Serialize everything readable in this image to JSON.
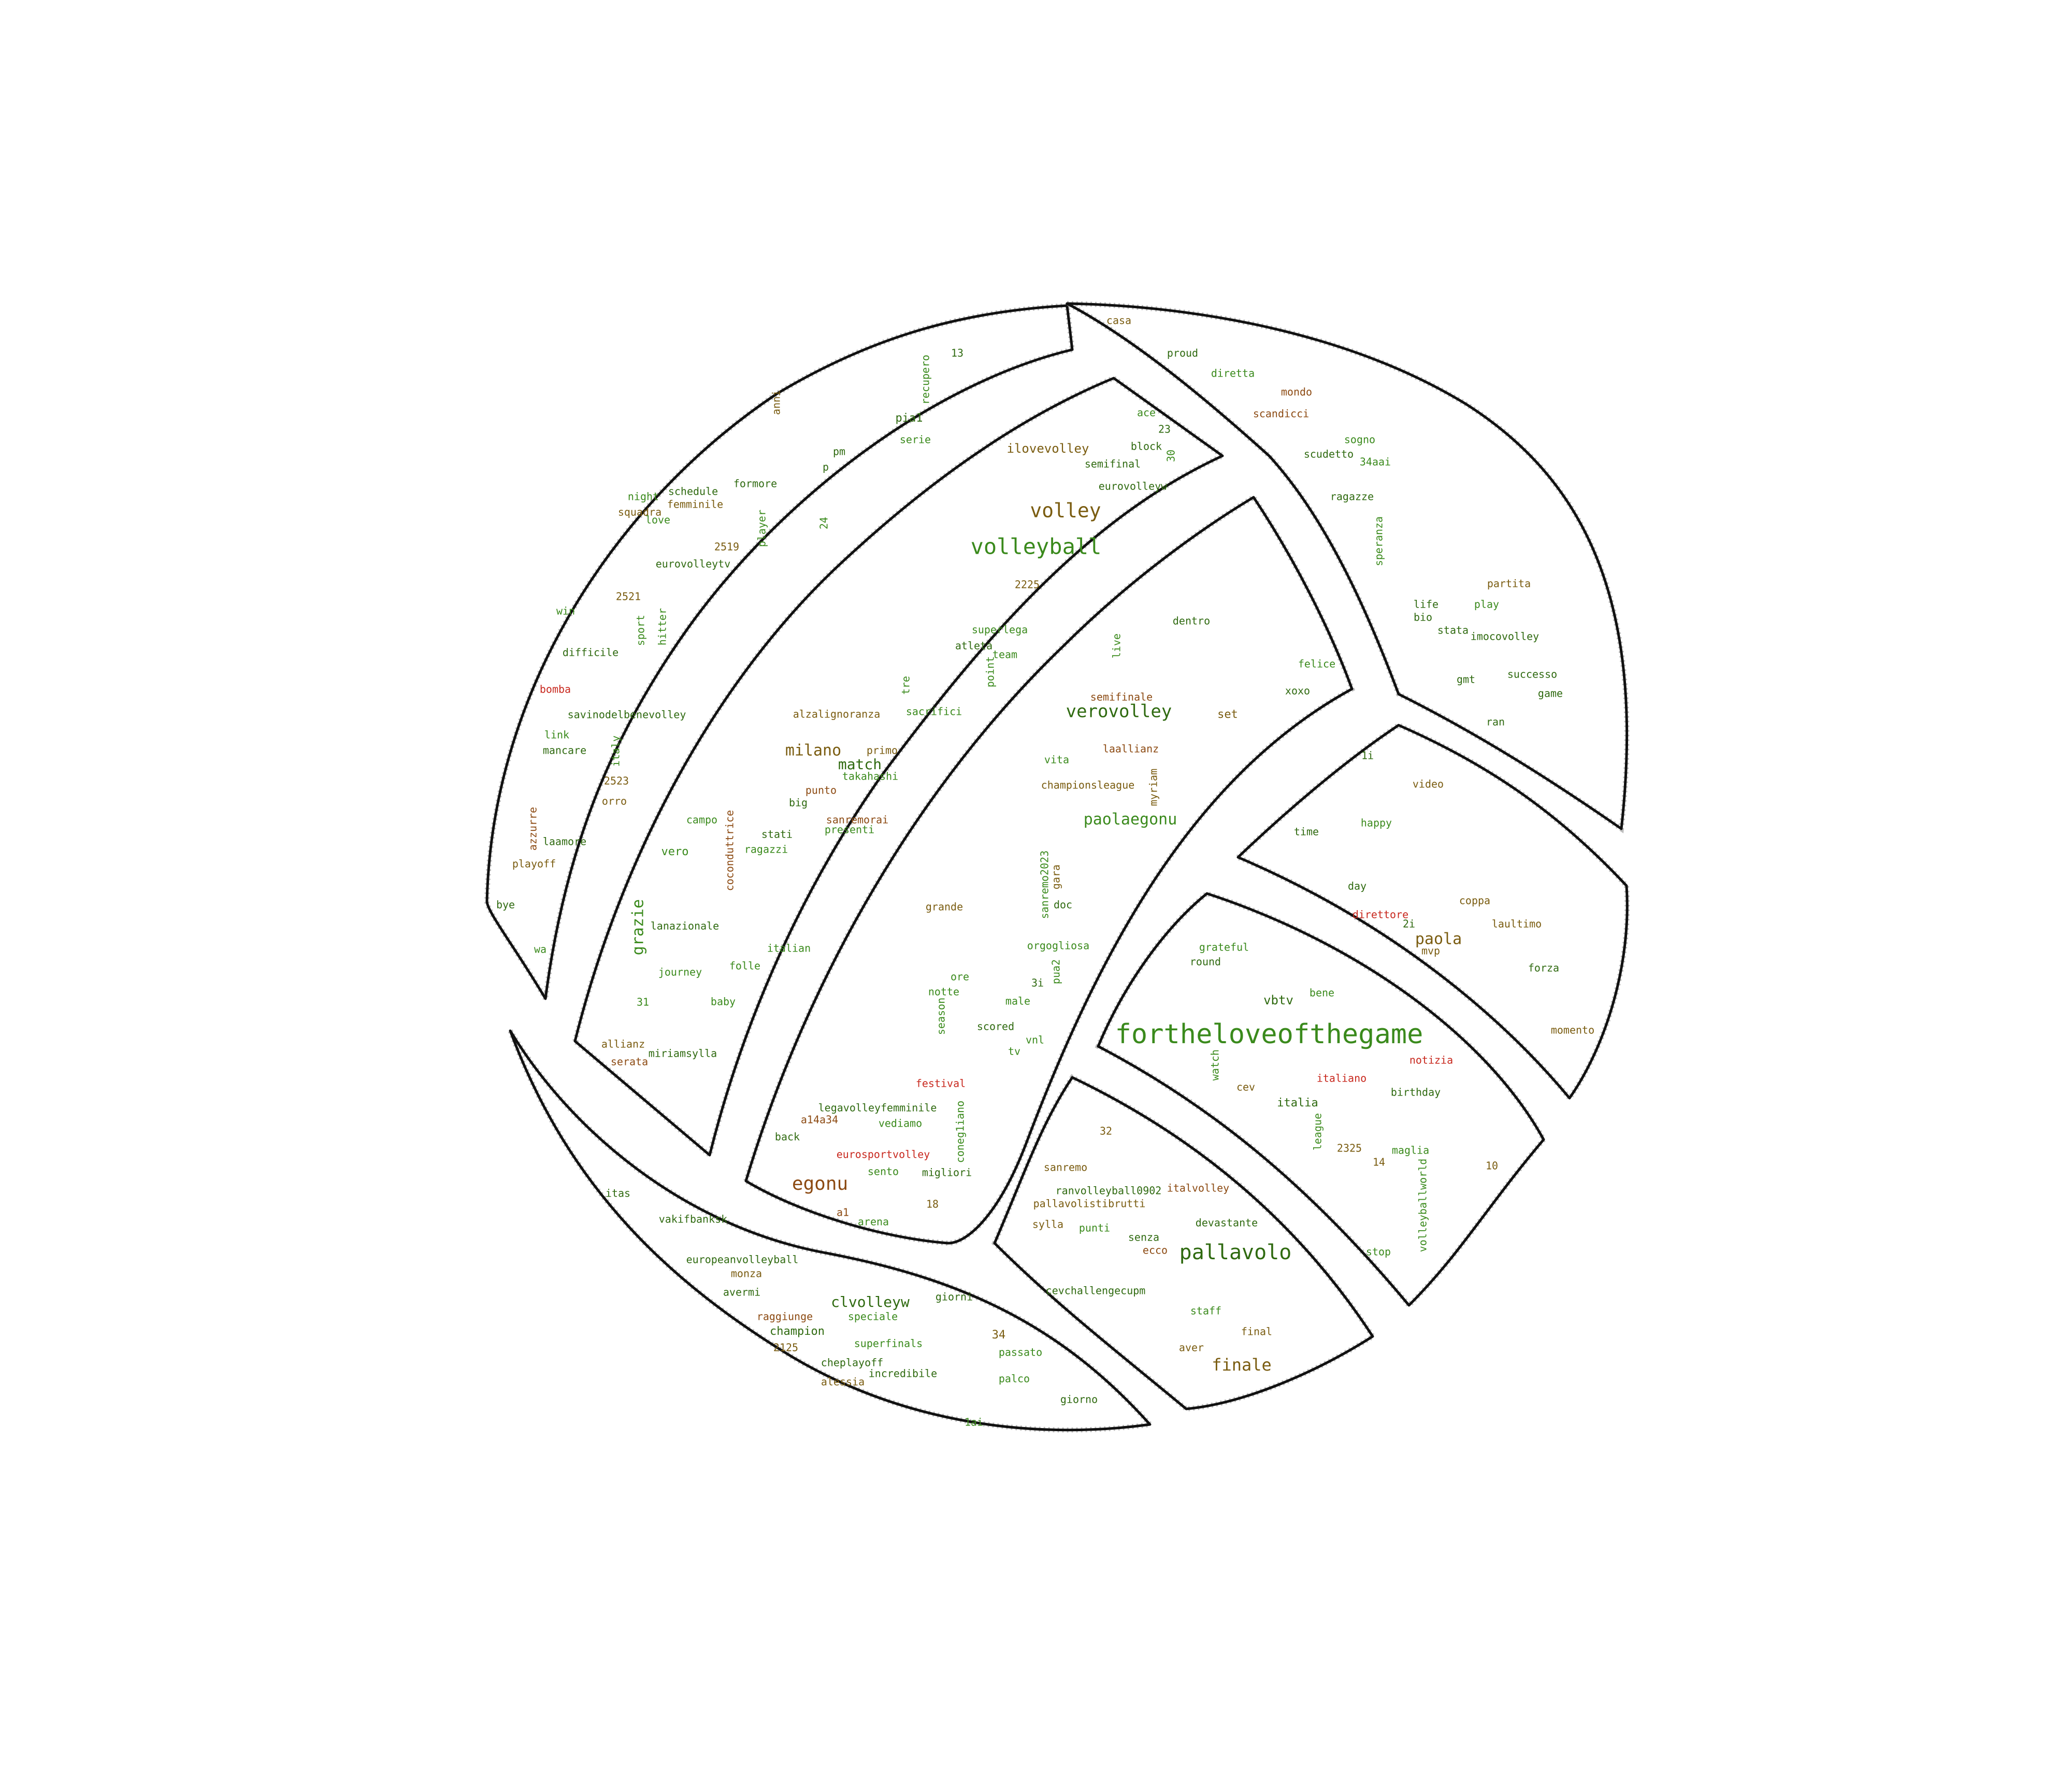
{
  "image": {
    "background": "#ffffff",
    "outline_color": "#111111"
  },
  "palette": {
    "green": "#3a8a1c",
    "dark_green": "#2f6a10",
    "olive": "#7a5c10",
    "brown": "#8c4a12",
    "red": "#c8281e"
  },
  "words": [
    {
      "text": "fortheloveofthegame",
      "size": 52,
      "color": "green"
    },
    {
      "text": "volleyball",
      "size": 42,
      "color": "green"
    },
    {
      "text": "volley",
      "size": 38,
      "color": "olive"
    },
    {
      "text": "pallavolo",
      "size": 40,
      "color": "dark_green"
    },
    {
      "text": "verovolley",
      "size": 34,
      "color": "dark_green"
    },
    {
      "text": "egonu",
      "size": 36,
      "color": "brown"
    },
    {
      "text": "finale",
      "size": 32,
      "color": "olive"
    },
    {
      "text": "paola",
      "size": 30,
      "color": "olive"
    },
    {
      "text": "paolaegonu",
      "size": 30,
      "color": "green"
    },
    {
      "text": "milano",
      "size": 30,
      "color": "olive"
    },
    {
      "text": "match",
      "size": 28,
      "color": "dark_green"
    },
    {
      "text": "clvolleyw",
      "size": 28,
      "color": "dark_green"
    },
    {
      "text": "grazie",
      "size": 30,
      "color": "green"
    },
    {
      "text": "vbtv",
      "size": 24,
      "color": "dark_green"
    },
    {
      "text": "ilovevolley",
      "size": 24,
      "color": "olive"
    },
    {
      "text": "casa",
      "size": 20,
      "color": "olive"
    },
    {
      "text": "proud",
      "size": 20,
      "color": "dark_green"
    },
    {
      "text": "diretta",
      "size": 20,
      "color": "green"
    },
    {
      "text": "mondo",
      "size": 20,
      "color": "brown"
    },
    {
      "text": "scandicci",
      "size": 20,
      "color": "brown"
    },
    {
      "text": "sogno",
      "size": 20,
      "color": "green"
    },
    {
      "text": "scudetto",
      "size": 20,
      "color": "dark_green"
    },
    {
      "text": "34aai",
      "size": 20,
      "color": "green"
    },
    {
      "text": "ragazze",
      "size": 20,
      "color": "dark_green"
    },
    {
      "text": "speranza",
      "size": 20,
      "color": "green"
    },
    {
      "text": "partita",
      "size": 20,
      "color": "olive"
    },
    {
      "text": "life",
      "size": 20,
      "color": "dark_green"
    },
    {
      "text": "play",
      "size": 20,
      "color": "green"
    },
    {
      "text": "bio",
      "size": 20,
      "color": "dark_green"
    },
    {
      "text": "stata",
      "size": 20,
      "color": "dark_green"
    },
    {
      "text": "imocovolley",
      "size": 20,
      "color": "dark_green"
    },
    {
      "text": "gmt",
      "size": 20,
      "color": "dark_green"
    },
    {
      "text": "successo",
      "size": 20,
      "color": "dark_green"
    },
    {
      "text": "game",
      "size": 20,
      "color": "dark_green"
    },
    {
      "text": "ran",
      "size": 20,
      "color": "dark_green"
    },
    {
      "text": "ace",
      "size": 20,
      "color": "green"
    },
    {
      "text": "23",
      "size": 20,
      "color": "dark_green"
    },
    {
      "text": "block",
      "size": 20,
      "color": "dark_green"
    },
    {
      "text": "30",
      "size": 20,
      "color": "green"
    },
    {
      "text": "semifinal",
      "size": 20,
      "color": "dark_green"
    },
    {
      "text": "eurovolleyw",
      "size": 20,
      "color": "dark_green"
    },
    {
      "text": "2225",
      "size": 20,
      "color": "olive"
    },
    {
      "text": "superlega",
      "size": 20,
      "color": "green"
    },
    {
      "text": "atleta",
      "size": 20,
      "color": "dark_green"
    },
    {
      "text": "team",
      "size": 20,
      "color": "green"
    },
    {
      "text": "point",
      "size": 20,
      "color": "green"
    },
    {
      "text": "live",
      "size": 20,
      "color": "green"
    },
    {
      "text": "dentro",
      "size": 20,
      "color": "dark_green"
    },
    {
      "text": "felice",
      "size": 20,
      "color": "green"
    },
    {
      "text": "xoxo",
      "size": 20,
      "color": "dark_green"
    },
    {
      "text": "semifinale",
      "size": 20,
      "color": "brown"
    },
    {
      "text": "set",
      "size": 22,
      "color": "olive"
    },
    {
      "text": "laallianz",
      "size": 20,
      "color": "brown"
    },
    {
      "text": "vita",
      "size": 20,
      "color": "green"
    },
    {
      "text": "championsleague",
      "size": 20,
      "color": "olive"
    },
    {
      "text": "myriam",
      "size": 20,
      "color": "olive"
    },
    {
      "text": "1i",
      "size": 20,
      "color": "dark_green"
    },
    {
      "text": "video",
      "size": 20,
      "color": "olive"
    },
    {
      "text": "time",
      "size": 20,
      "color": "dark_green"
    },
    {
      "text": "happy",
      "size": 20,
      "color": "green"
    },
    {
      "text": "day",
      "size": 20,
      "color": "dark_green"
    },
    {
      "text": "coppa",
      "size": 20,
      "color": "olive"
    },
    {
      "text": "direttore",
      "size": 20,
      "color": "red"
    },
    {
      "text": "2i",
      "size": 20,
      "color": "dark_green"
    },
    {
      "text": "laultimo",
      "size": 20,
      "color": "olive"
    },
    {
      "text": "mvp",
      "size": 20,
      "color": "olive"
    },
    {
      "text": "forza",
      "size": 20,
      "color": "dark_green"
    },
    {
      "text": "momento",
      "size": 20,
      "color": "olive"
    },
    {
      "text": "notizia",
      "size": 20,
      "color": "red"
    },
    {
      "text": "birthday",
      "size": 20,
      "color": "dark_green"
    },
    {
      "text": "maglia",
      "size": 20,
      "color": "green"
    },
    {
      "text": "10",
      "size": 20,
      "color": "olive"
    },
    {
      "text": "volleyballworld",
      "size": 20,
      "color": "green"
    },
    {
      "text": "stop",
      "size": 20,
      "color": "green"
    },
    {
      "text": "grateful",
      "size": 20,
      "color": "green"
    },
    {
      "text": "round",
      "size": 20,
      "color": "dark_green"
    },
    {
      "text": "bene",
      "size": 20,
      "color": "green"
    },
    {
      "text": "watch",
      "size": 20,
      "color": "green"
    },
    {
      "text": "cev",
      "size": 20,
      "color": "olive"
    },
    {
      "text": "italiano",
      "size": 20,
      "color": "red"
    },
    {
      "text": "italia",
      "size": 22,
      "color": "dark_green"
    },
    {
      "text": "league",
      "size": 20,
      "color": "green"
    },
    {
      "text": "2325",
      "size": 20,
      "color": "olive"
    },
    {
      "text": "14",
      "size": 20,
      "color": "olive"
    },
    {
      "text": "32",
      "size": 20,
      "color": "olive"
    },
    {
      "text": "sanremo",
      "size": 20,
      "color": "olive"
    },
    {
      "text": "ranvolleyball0902",
      "size": 20,
      "color": "dark_green"
    },
    {
      "text": "italvolley",
      "size": 20,
      "color": "brown"
    },
    {
      "text": "pallavolistibrutti",
      "size": 20,
      "color": "olive"
    },
    {
      "text": "sylla",
      "size": 20,
      "color": "olive"
    },
    {
      "text": "punti",
      "size": 20,
      "color": "green"
    },
    {
      "text": "devastante",
      "size": 20,
      "color": "dark_green"
    },
    {
      "text": "senza",
      "size": 20,
      "color": "dark_green"
    },
    {
      "text": "ecco",
      "size": 20,
      "color": "brown"
    },
    {
      "text": "cevchallengecupm",
      "size": 20,
      "color": "dark_green"
    },
    {
      "text": "staff",
      "size": 20,
      "color": "green"
    },
    {
      "text": "final",
      "size": 20,
      "color": "olive"
    },
    {
      "text": "aver",
      "size": 20,
      "color": "olive"
    },
    {
      "text": "13",
      "size": 20,
      "color": "dark_green"
    },
    {
      "text": "recupero",
      "size": 20,
      "color": "green"
    },
    {
      "text": "anni",
      "size": 20,
      "color": "olive"
    },
    {
      "text": "pia1",
      "size": 22,
      "color": "dark_green"
    },
    {
      "text": "serie",
      "size": 20,
      "color": "green"
    },
    {
      "text": "pm",
      "size": 20,
      "color": "dark_green"
    },
    {
      "text": "p",
      "size": 20,
      "color": "dark_green"
    },
    {
      "text": "formore",
      "size": 20,
      "color": "dark_green"
    },
    {
      "text": "schedule",
      "size": 20,
      "color": "dark_green"
    },
    {
      "text": "femminile",
      "size": 20,
      "color": "olive"
    },
    {
      "text": "night",
      "size": 20,
      "color": "green"
    },
    {
      "text": "squadra",
      "size": 20,
      "color": "olive"
    },
    {
      "text": "love",
      "size": 20,
      "color": "green"
    },
    {
      "text": "player",
      "size": 20,
      "color": "green"
    },
    {
      "text": "24",
      "size": 20,
      "color": "green"
    },
    {
      "text": "2519",
      "size": 20,
      "color": "olive"
    },
    {
      "text": "eurovolleytv",
      "size": 20,
      "color": "dark_green"
    },
    {
      "text": "2521",
      "size": 20,
      "color": "olive"
    },
    {
      "text": "win",
      "size": 20,
      "color": "green"
    },
    {
      "text": "sport",
      "size": 20,
      "color": "green"
    },
    {
      "text": "hitter",
      "size": 20,
      "color": "green"
    },
    {
      "text": "difficile",
      "size": 20,
      "color": "dark_green"
    },
    {
      "text": "bomba",
      "size": 20,
      "color": "red"
    },
    {
      "text": "savinodelbenevolley",
      "size": 20,
      "color": "dark_green"
    },
    {
      "text": "link",
      "size": 20,
      "color": "green"
    },
    {
      "text": "mancare",
      "size": 20,
      "color": "dark_green"
    },
    {
      "text": "italy",
      "size": 20,
      "color": "green"
    },
    {
      "text": "2523",
      "size": 20,
      "color": "olive"
    },
    {
      "text": "orro",
      "size": 20,
      "color": "olive"
    },
    {
      "text": "azzurre",
      "size": 20,
      "color": "brown"
    },
    {
      "text": "laamore",
      "size": 20,
      "color": "dark_green"
    },
    {
      "text": "playoff",
      "size": 20,
      "color": "olive"
    },
    {
      "text": "bye",
      "size": 20,
      "color": "dark_green"
    },
    {
      "text": "wa",
      "size": 20,
      "color": "green"
    },
    {
      "text": "tre",
      "size": 20,
      "color": "green"
    },
    {
      "text": "sacrifici",
      "size": 20,
      "color": "green"
    },
    {
      "text": "alzalignoranza",
      "size": 20,
      "color": "olive"
    },
    {
      "text": "primo",
      "size": 20,
      "color": "olive"
    },
    {
      "text": "takahashi",
      "size": 20,
      "color": "green"
    },
    {
      "text": "punto",
      "size": 20,
      "color": "brown"
    },
    {
      "text": "big",
      "size": 20,
      "color": "dark_green"
    },
    {
      "text": "campo",
      "size": 20,
      "color": "green"
    },
    {
      "text": "sanremorai",
      "size": 20,
      "color": "brown"
    },
    {
      "text": "presenti",
      "size": 20,
      "color": "green"
    },
    {
      "text": "stati",
      "size": 20,
      "color": "dark_green"
    },
    {
      "text": "ragazzi",
      "size": 20,
      "color": "green"
    },
    {
      "text": "vero",
      "size": 22,
      "color": "green"
    },
    {
      "text": "coconduttrice",
      "size": 20,
      "color": "brown"
    },
    {
      "text": "lanazionale",
      "size": 20,
      "color": "dark_green"
    },
    {
      "text": "italian",
      "size": 20,
      "color": "green"
    },
    {
      "text": "journey",
      "size": 20,
      "color": "green"
    },
    {
      "text": "folle",
      "size": 20,
      "color": "green"
    },
    {
      "text": "31",
      "size": 20,
      "color": "green"
    },
    {
      "text": "baby",
      "size": 20,
      "color": "green"
    },
    {
      "text": "allianz",
      "size": 20,
      "color": "olive"
    },
    {
      "text": "serata",
      "size": 20,
      "color": "brown"
    },
    {
      "text": "miriamsylla",
      "size": 20,
      "color": "dark_green"
    },
    {
      "text": "grande",
      "size": 20,
      "color": "olive"
    },
    {
      "text": "sanremo2023",
      "size": 20,
      "color": "green"
    },
    {
      "text": "gara",
      "size": 20,
      "color": "olive"
    },
    {
      "text": "doc",
      "size": 20,
      "color": "dark_green"
    },
    {
      "text": "orgogliosa",
      "size": 20,
      "color": "green"
    },
    {
      "text": "pua2",
      "size": 20,
      "color": "green"
    },
    {
      "text": "ore",
      "size": 20,
      "color": "green"
    },
    {
      "text": "3i",
      "size": 20,
      "color": "dark_green"
    },
    {
      "text": "notte",
      "size": 20,
      "color": "green"
    },
    {
      "text": "male",
      "size": 20,
      "color": "green"
    },
    {
      "text": "season",
      "size": 20,
      "color": "green"
    },
    {
      "text": "scored",
      "size": 20,
      "color": "dark_green"
    },
    {
      "text": "vnl",
      "size": 20,
      "color": "green"
    },
    {
      "text": "tv",
      "size": 20,
      "color": "green"
    },
    {
      "text": "festival",
      "size": 20,
      "color": "red"
    },
    {
      "text": "legavolleyfemminile",
      "size": 20,
      "color": "dark_green"
    },
    {
      "text": "a14a34",
      "size": 20,
      "color": "brown"
    },
    {
      "text": "vediamo",
      "size": 20,
      "color": "green"
    },
    {
      "text": "coneg1iano",
      "size": 20,
      "color": "green"
    },
    {
      "text": "back",
      "size": 20,
      "color": "dark_green"
    },
    {
      "text": "eurosportvolley",
      "size": 20,
      "color": "red"
    },
    {
      "text": "sento",
      "size": 20,
      "color": "green"
    },
    {
      "text": "migliori",
      "size": 20,
      "color": "dark_green"
    },
    {
      "text": "18",
      "size": 20,
      "color": "olive"
    },
    {
      "text": "a1",
      "size": 20,
      "color": "brown"
    },
    {
      "text": "arena",
      "size": 20,
      "color": "green"
    },
    {
      "text": "itas",
      "size": 20,
      "color": "dark_green"
    },
    {
      "text": "vakifbanksk",
      "size": 20,
      "color": "dark_green"
    },
    {
      "text": "europeanvolleyball",
      "size": 20,
      "color": "dark_green"
    },
    {
      "text": "monza",
      "size": 20,
      "color": "olive"
    },
    {
      "text": "avermi",
      "size": 20,
      "color": "dark_green"
    },
    {
      "text": "giorni",
      "size": 20,
      "color": "dark_green"
    },
    {
      "text": "raggiunge",
      "size": 20,
      "color": "brown"
    },
    {
      "text": "speciale",
      "size": 20,
      "color": "green"
    },
    {
      "text": "champion",
      "size": 22,
      "color": "dark_green"
    },
    {
      "text": "34",
      "size": 22,
      "color": "olive"
    },
    {
      "text": "superfinals",
      "size": 20,
      "color": "green"
    },
    {
      "text": "2125",
      "size": 20,
      "color": "olive"
    },
    {
      "text": "passato",
      "size": 20,
      "color": "green"
    },
    {
      "text": "cheplayoff",
      "size": 20,
      "color": "dark_green"
    },
    {
      "text": "incredibile",
      "size": 20,
      "color": "dark_green"
    },
    {
      "text": "alessia",
      "size": 20,
      "color": "olive"
    },
    {
      "text": "palco",
      "size": 20,
      "color": "green"
    },
    {
      "text": "giorno",
      "size": 20,
      "color": "dark_green"
    },
    {
      "text": "1ai",
      "size": 20,
      "color": "green"
    }
  ]
}
